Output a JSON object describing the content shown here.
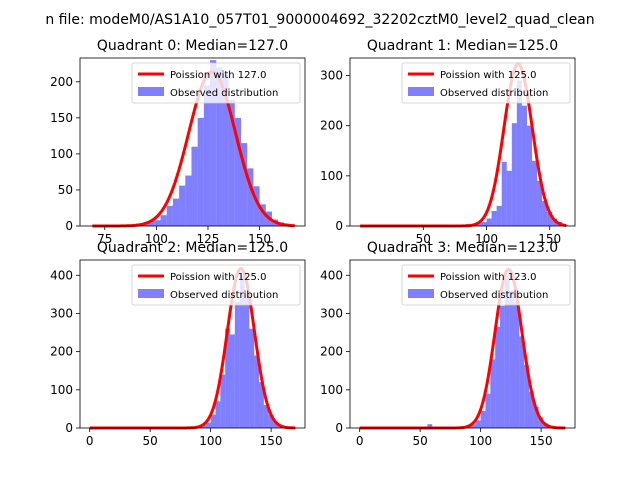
{
  "suptitle": "n file: modeM0/AS1A10_057T01_9000004692_32202cztM0_level2_quad_clean",
  "colors": {
    "fit": "#ff0000",
    "hist": "#0000ff"
  },
  "chart_data": [
    {
      "type": "bar",
      "title": "Quadrant 0: Median=127.0",
      "xlim": [
        63,
        172
      ],
      "ylim": [
        0,
        233
      ],
      "xticks": [
        75,
        100,
        125,
        150
      ],
      "yticks": [
        0,
        50,
        100,
        150,
        200
      ],
      "legend_loc": "top-right",
      "fit_label": "Poission with 127.0",
      "hist_label": "Observed distribution",
      "median": 127,
      "fit_peak": 214,
      "fit_sigma": 11.3,
      "fit_range": [
        69,
        167
      ],
      "bar_width": 3,
      "bars_x": [
        69,
        72,
        75,
        78,
        81,
        84,
        87,
        90,
        93,
        96,
        99,
        102,
        105,
        108,
        111,
        114,
        117,
        120,
        123,
        126,
        129,
        132,
        135,
        138,
        141,
        144,
        147,
        150,
        153,
        156,
        159,
        162,
        165
      ],
      "bars_y": [
        1,
        1,
        0,
        1,
        1,
        2,
        2,
        1,
        4,
        7,
        8,
        15,
        28,
        38,
        56,
        70,
        110,
        150,
        195,
        230,
        220,
        210,
        175,
        150,
        115,
        80,
        55,
        30,
        20,
        9,
        5,
        3,
        1
      ]
    },
    {
      "type": "bar",
      "title": "Quadrant 1: Median=125.0",
      "xlim": [
        -8,
        170
      ],
      "ylim": [
        0,
        335
      ],
      "xticks": [
        50,
        100,
        150
      ],
      "yticks": [
        0,
        100,
        200,
        300
      ],
      "legend_loc": "top-right",
      "fit_label": "Poission with 125.0",
      "hist_label": "Observed distribution",
      "median": 125,
      "fit_peak": 323,
      "fit_sigma": 11.2,
      "fit_range": [
        0,
        163
      ],
      "bar_width": 4,
      "bars_x": [
        0,
        4,
        8,
        12,
        16,
        20,
        24,
        28,
        32,
        36,
        40,
        44,
        48,
        52,
        56,
        60,
        64,
        68,
        72,
        76,
        80,
        84,
        88,
        92,
        96,
        100,
        104,
        108,
        112,
        116,
        120,
        124,
        128,
        132,
        136,
        140,
        144,
        148,
        152,
        156,
        160
      ],
      "bars_y": [
        0,
        0,
        1,
        0,
        0,
        1,
        0,
        1,
        0,
        1,
        0,
        0,
        1,
        0,
        1,
        2,
        1,
        1,
        2,
        1,
        3,
        4,
        3,
        6,
        8,
        15,
        30,
        40,
        128,
        110,
        205,
        290,
        240,
        200,
        130,
        90,
        50,
        28,
        15,
        8,
        3
      ]
    },
    {
      "type": "bar",
      "title": "Quadrant 2: Median=125.0",
      "xlim": [
        -8,
        178
      ],
      "ylim": [
        0,
        440
      ],
      "xticks": [
        0,
        50,
        100,
        150
      ],
      "yticks": [
        0,
        100,
        200,
        300,
        400
      ],
      "legend_loc": "top-right",
      "fit_label": "Poission with 125.0",
      "hist_label": "Observed distribution",
      "median": 125,
      "fit_peak": 418,
      "fit_sigma": 11.2,
      "fit_range": [
        0,
        170
      ],
      "bar_width": 4,
      "bars_x": [
        0,
        4,
        8,
        12,
        16,
        20,
        24,
        28,
        32,
        36,
        40,
        44,
        48,
        52,
        56,
        60,
        64,
        68,
        72,
        76,
        80,
        84,
        88,
        92,
        96,
        100,
        104,
        108,
        112,
        116,
        120,
        124,
        128,
        132,
        136,
        140,
        144,
        148,
        152,
        156,
        160,
        164,
        168
      ],
      "bars_y": [
        1,
        0,
        0,
        0,
        0,
        0,
        1,
        0,
        0,
        1,
        0,
        0,
        0,
        1,
        0,
        0,
        1,
        1,
        1,
        2,
        1,
        3,
        4,
        8,
        14,
        35,
        70,
        140,
        260,
        245,
        330,
        400,
        350,
        260,
        190,
        120,
        60,
        35,
        15,
        8,
        4,
        2,
        1
      ]
    },
    {
      "type": "bar",
      "title": "Quadrant 3: Median=123.0",
      "xlim": [
        -8,
        178
      ],
      "ylim": [
        0,
        440
      ],
      "xticks": [
        0,
        50,
        100,
        150
      ],
      "yticks": [
        0,
        100,
        200,
        300,
        400
      ],
      "legend_loc": "top-right",
      "fit_label": "Poission with 123.0",
      "hist_label": "Observed distribution",
      "median": 123,
      "fit_peak": 416,
      "fit_sigma": 11.1,
      "fit_range": [
        0,
        170
      ],
      "bar_width": 4,
      "bars_x": [
        0,
        4,
        8,
        12,
        16,
        20,
        24,
        28,
        32,
        36,
        40,
        44,
        48,
        52,
        56,
        60,
        64,
        68,
        72,
        76,
        80,
        84,
        88,
        92,
        96,
        100,
        104,
        108,
        112,
        116,
        120,
        124,
        128,
        132,
        136,
        140,
        144,
        148,
        152,
        156,
        160,
        164,
        168
      ],
      "bars_y": [
        1,
        0,
        0,
        0,
        0,
        0,
        1,
        0,
        0,
        0,
        0,
        0,
        0,
        0,
        10,
        1,
        1,
        1,
        2,
        2,
        3,
        3,
        5,
        10,
        20,
        45,
        90,
        180,
        265,
        320,
        400,
        360,
        330,
        240,
        165,
        95,
        55,
        28,
        12,
        6,
        3,
        1,
        1
      ]
    }
  ]
}
